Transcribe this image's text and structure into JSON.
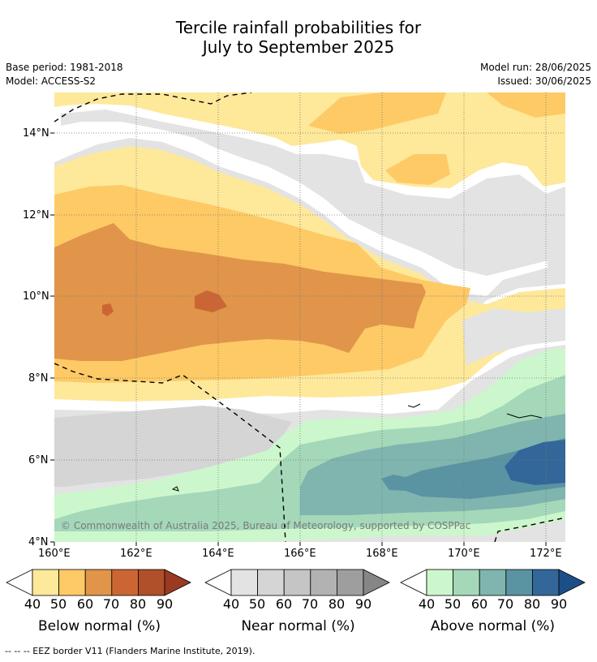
{
  "title_line1": "Tercile rainfall probabilities for",
  "title_line2": "July to September 2025",
  "base_period": "Base period: 1981-2018",
  "model": "Model: ACCESS-S2",
  "model_run": "Model run: 28/06/2025",
  "issued": "Issued: 30/06/2025",
  "copyright": "© Commonwealth of Australia 2025, Bureau of Meteorology, supported by COSPPac",
  "footnote": "-- -- -- EEZ border V11 (Flanders Marine Institute, 2019).",
  "axes": {
    "x_ticks": [
      "160°E",
      "162°E",
      "164°E",
      "166°E",
      "168°E",
      "170°E",
      "172°E"
    ],
    "y_ticks": [
      "14°N",
      "12°N",
      "10°N",
      "8°N",
      "6°N",
      "4°N"
    ],
    "x_values": [
      160,
      162,
      164,
      166,
      168,
      170,
      172
    ],
    "y_values": [
      14,
      12,
      10,
      8,
      6,
      4
    ],
    "xlim": [
      160,
      172.5
    ],
    "ylim": [
      4,
      15
    ]
  },
  "colorbars": [
    {
      "title": "Below normal (%)",
      "ticks": [
        "40",
        "50",
        "60",
        "70",
        "80",
        "90"
      ],
      "colors": [
        "#fee89a",
        "#fdca65",
        "#e0954a",
        "#cb6634",
        "#b0502a",
        "#9a3a22"
      ]
    },
    {
      "title": "Near normal (%)",
      "ticks": [
        "40",
        "50",
        "60",
        "70",
        "80",
        "90"
      ],
      "colors": [
        "#e3e3e3",
        "#d5d5d5",
        "#c5c5c5",
        "#b2b2b2",
        "#9e9e9e",
        "#868686"
      ]
    },
    {
      "title": "Above normal (%)",
      "ticks": [
        "40",
        "50",
        "60",
        "70",
        "80",
        "90"
      ],
      "colors": [
        "#ccf7cc",
        "#a4d8b9",
        "#7fb5ae",
        "#5a93a2",
        "#33679a",
        "#1c4f88"
      ]
    }
  ]
}
